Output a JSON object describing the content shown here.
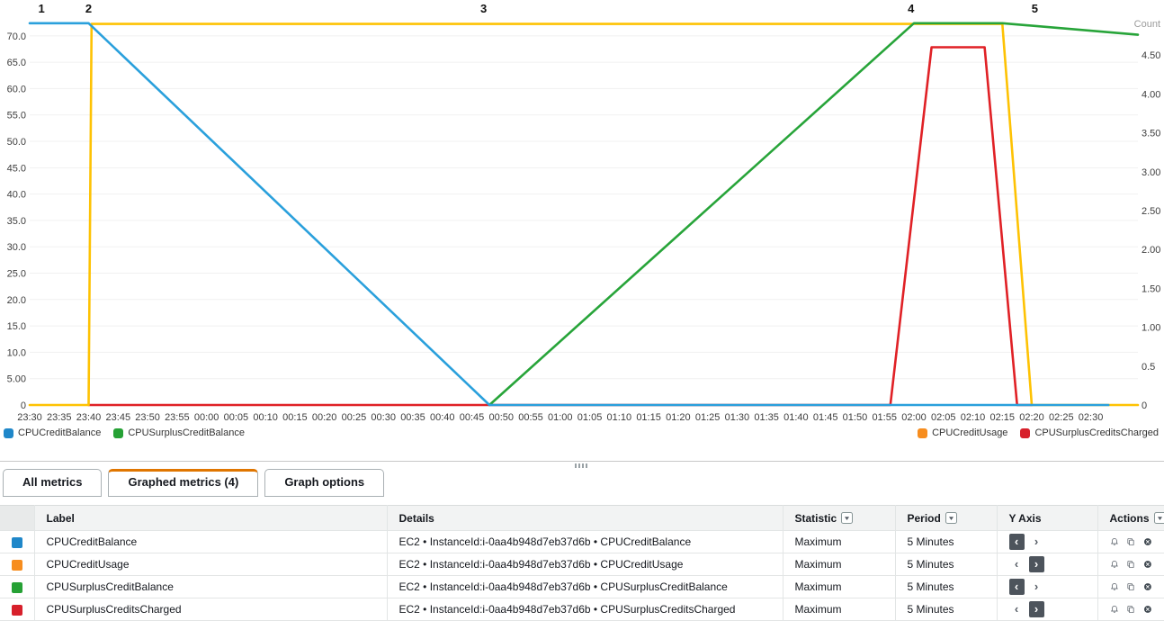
{
  "chart": {
    "legend_left": [
      {
        "label": "CPUCreditBalance",
        "color": "#1f87c9"
      },
      {
        "label": "CPUSurplusCreditBalance",
        "color": "#26a135"
      }
    ],
    "legend_right": [
      {
        "label": "CPUCreditUsage",
        "color": "#f78d1e"
      },
      {
        "label": "CPUSurplusCreditsCharged",
        "color": "#d7202b"
      }
    ]
  },
  "chart_data": {
    "type": "line",
    "title": "",
    "grid": "horizontal-only",
    "x_unit": "time (HH:MM)",
    "x_ticks": [
      "23:30",
      "23:35",
      "23:40",
      "23:45",
      "23:50",
      "23:55",
      "00:00",
      "00:05",
      "00:10",
      "00:15",
      "00:20",
      "00:25",
      "00:30",
      "00:35",
      "00:40",
      "00:45",
      "00:50",
      "00:55",
      "01:00",
      "01:05",
      "01:10",
      "01:15",
      "01:20",
      "01:25",
      "01:30",
      "01:35",
      "01:40",
      "01:45",
      "01:50",
      "01:55",
      "02:00",
      "02:05",
      "02:10",
      "02:15",
      "02:20",
      "02:25",
      "02:30"
    ],
    "x_tick_interval_minutes": 5,
    "x_domain_minutes": [
      0,
      188
    ],
    "left_axis": {
      "ticks": [
        "0",
        "5.00",
        "10.0",
        "15.0",
        "20.0",
        "25.0",
        "30.0",
        "35.0",
        "40.0",
        "45.0",
        "50.0",
        "55.0",
        "60.0",
        "65.0",
        "70.0"
      ],
      "tick_step": 5,
      "max": 72.7
    },
    "right_axis": {
      "title": "Count",
      "ticks": [
        "0",
        "0.5",
        "1.00",
        "1.50",
        "2.00",
        "2.50",
        "3.00",
        "3.50",
        "4.00",
        "4.50"
      ],
      "tick_step": 0.5,
      "max": 4.93
    },
    "annotations": [
      {
        "label": "1",
        "t": 2
      },
      {
        "label": "2",
        "t": 10
      },
      {
        "label": "3",
        "t": 77
      },
      {
        "label": "4",
        "t": 149.5
      },
      {
        "label": "5",
        "t": 170.5
      }
    ],
    "series": [
      {
        "name": "CPUCreditBalance",
        "axis": "left",
        "line_color": "#2aa0dc",
        "points": [
          [
            0,
            72.4
          ],
          [
            10,
            72.4
          ],
          [
            78,
            0
          ],
          [
            183,
            0
          ]
        ]
      },
      {
        "name": "CPUCreditUsage",
        "axis": "right",
        "line_color": "#fec203",
        "points": [
          [
            0,
            0
          ],
          [
            10,
            0
          ],
          [
            10.5,
            4.9
          ],
          [
            165,
            4.9
          ],
          [
            170,
            0
          ],
          [
            188,
            0
          ]
        ]
      },
      {
        "name": "CPUSurplusCreditBalance",
        "axis": "left",
        "line_color": "#27a439",
        "points": [
          [
            78,
            0
          ],
          [
            150,
            72.4
          ],
          [
            165,
            72.4
          ],
          [
            188,
            70.2
          ]
        ]
      },
      {
        "name": "CPUSurplusCreditsCharged",
        "axis": "right",
        "line_color": "#e02126",
        "points": [
          [
            10,
            0
          ],
          [
            146,
            0
          ],
          [
            153,
            4.6
          ],
          [
            162,
            4.6
          ],
          [
            167.5,
            0
          ],
          [
            170,
            0
          ]
        ]
      }
    ],
    "draw_order": [
      3,
      1,
      2,
      0
    ]
  },
  "tabs": [
    {
      "label": "All metrics",
      "active": false
    },
    {
      "label": "Graphed metrics (4)",
      "active": true
    },
    {
      "label": "Graph options",
      "active": false
    }
  ],
  "table": {
    "headers": {
      "label": "Label",
      "details": "Details",
      "statistic": "Statistic",
      "period": "Period",
      "y_axis": "Y Axis",
      "actions": "Actions"
    },
    "rows": [
      {
        "color": "#1f87c9",
        "label": "CPUCreditBalance",
        "details": "EC2 • InstanceId:i-0aa4b948d7eb37d6b • CPUCreditBalance",
        "statistic": "Maximum",
        "period": "5 Minutes",
        "y_axis": "left"
      },
      {
        "color": "#f78d1e",
        "label": "CPUCreditUsage",
        "details": "EC2 • InstanceId:i-0aa4b948d7eb37d6b • CPUCreditUsage",
        "statistic": "Maximum",
        "period": "5 Minutes",
        "y_axis": "right"
      },
      {
        "color": "#26a135",
        "label": "CPUSurplusCreditBalance",
        "details": "EC2 • InstanceId:i-0aa4b948d7eb37d6b • CPUSurplusCreditBalance",
        "statistic": "Maximum",
        "period": "5 Minutes",
        "y_axis": "left"
      },
      {
        "color": "#d7202b",
        "label": "CPUSurplusCreditsCharged",
        "details": "EC2 • InstanceId:i-0aa4b948d7eb37d6b • CPUSurplusCreditsCharged",
        "statistic": "Maximum",
        "period": "5 Minutes",
        "y_axis": "right"
      }
    ]
  }
}
